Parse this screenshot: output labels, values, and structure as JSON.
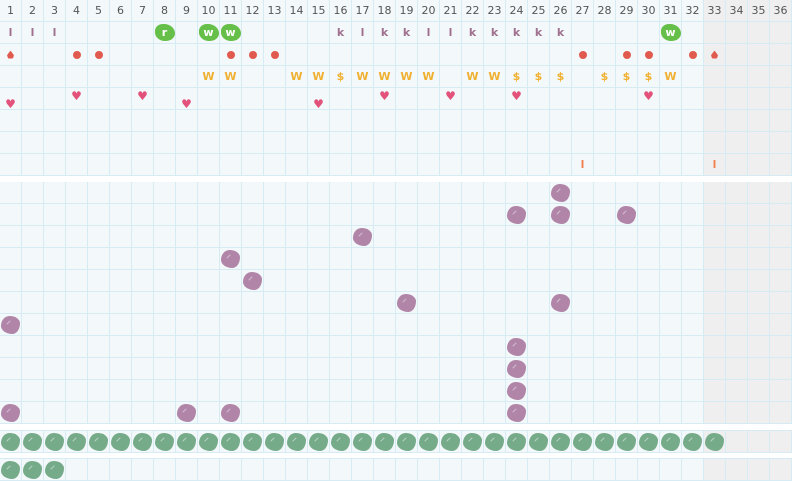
{
  "columns": [
    "1",
    "2",
    "3",
    "4",
    "5",
    "6",
    "7",
    "8",
    "9",
    "10",
    "11",
    "12",
    "13",
    "14",
    "15",
    "16",
    "17",
    "18",
    "19",
    "20",
    "21",
    "22",
    "23",
    "24",
    "25",
    "26",
    "27",
    "28",
    "29",
    "30",
    "31",
    "32",
    "33",
    "34",
    "35",
    "36"
  ],
  "disabled_from_column": 33,
  "colors": {
    "letter_purple": "#a0708f",
    "gold": "#f0b030",
    "red": "#e05a4e",
    "heart": "#e2527a",
    "orange": "#f08050",
    "badge_green": "#66bf48",
    "blob_purple": "#b085a8",
    "blob_green": "#76ab8a"
  },
  "top_rows": [
    [
      {
        "col": 1,
        "t": "text",
        "s": "l",
        "c": "letter_purple"
      },
      {
        "col": 2,
        "t": "text",
        "s": "l",
        "c": "letter_purple"
      },
      {
        "col": 3,
        "t": "text",
        "s": "l",
        "c": "letter_purple"
      },
      {
        "col": 8,
        "t": "badge",
        "s": "r"
      },
      {
        "col": 10,
        "t": "badge",
        "s": "w"
      },
      {
        "col": 11,
        "t": "badge",
        "s": "w"
      },
      {
        "col": 16,
        "t": "text",
        "s": "k",
        "c": "letter_purple"
      },
      {
        "col": 17,
        "t": "text",
        "s": "l",
        "c": "letter_purple"
      },
      {
        "col": 18,
        "t": "text",
        "s": "k",
        "c": "letter_purple"
      },
      {
        "col": 19,
        "t": "text",
        "s": "k",
        "c": "letter_purple"
      },
      {
        "col": 20,
        "t": "text",
        "s": "l",
        "c": "letter_purple"
      },
      {
        "col": 21,
        "t": "text",
        "s": "l",
        "c": "letter_purple"
      },
      {
        "col": 22,
        "t": "text",
        "s": "k",
        "c": "letter_purple"
      },
      {
        "col": 23,
        "t": "text",
        "s": "k",
        "c": "letter_purple"
      },
      {
        "col": 24,
        "t": "text",
        "s": "k",
        "c": "letter_purple"
      },
      {
        "col": 25,
        "t": "text",
        "s": "k",
        "c": "letter_purple"
      },
      {
        "col": 26,
        "t": "text",
        "s": "k",
        "c": "letter_purple"
      },
      {
        "col": 31,
        "t": "badge",
        "s": "w"
      }
    ],
    [
      {
        "col": 1,
        "t": "drop"
      },
      {
        "col": 4,
        "t": "dot"
      },
      {
        "col": 5,
        "t": "dot"
      },
      {
        "col": 11,
        "t": "dot"
      },
      {
        "col": 12,
        "t": "dot"
      },
      {
        "col": 13,
        "t": "dot"
      },
      {
        "col": 27,
        "t": "dot"
      },
      {
        "col": 29,
        "t": "dot"
      },
      {
        "col": 30,
        "t": "dot"
      },
      {
        "col": 32,
        "t": "dot"
      },
      {
        "col": 33,
        "t": "drop"
      }
    ],
    [
      {
        "col": 10,
        "t": "text",
        "s": "W",
        "c": "gold"
      },
      {
        "col": 11,
        "t": "text",
        "s": "W",
        "c": "gold"
      },
      {
        "col": 14,
        "t": "text",
        "s": "W",
        "c": "gold"
      },
      {
        "col": 15,
        "t": "text",
        "s": "W",
        "c": "gold"
      },
      {
        "col": 16,
        "t": "text",
        "s": "$",
        "c": "gold"
      },
      {
        "col": 17,
        "t": "text",
        "s": "W",
        "c": "gold"
      },
      {
        "col": 18,
        "t": "text",
        "s": "W",
        "c": "gold"
      },
      {
        "col": 19,
        "t": "text",
        "s": "W",
        "c": "gold"
      },
      {
        "col": 20,
        "t": "text",
        "s": "W",
        "c": "gold"
      },
      {
        "col": 22,
        "t": "text",
        "s": "W",
        "c": "gold"
      },
      {
        "col": 23,
        "t": "text",
        "s": "W",
        "c": "gold"
      },
      {
        "col": 24,
        "t": "text",
        "s": "$",
        "c": "gold"
      },
      {
        "col": 25,
        "t": "text",
        "s": "$",
        "c": "gold"
      },
      {
        "col": 26,
        "t": "text",
        "s": "$",
        "c": "gold"
      },
      {
        "col": 28,
        "t": "text",
        "s": "$",
        "c": "gold"
      },
      {
        "col": 29,
        "t": "text",
        "s": "$",
        "c": "gold"
      },
      {
        "col": 30,
        "t": "text",
        "s": "$",
        "c": "gold"
      },
      {
        "col": 31,
        "t": "text",
        "s": "W",
        "c": "gold"
      }
    ],
    [
      {
        "col": 1,
        "t": "heart",
        "pos": "down"
      },
      {
        "col": 4,
        "t": "heart",
        "pos": "up"
      },
      {
        "col": 7,
        "t": "heart",
        "pos": "up"
      },
      {
        "col": 9,
        "t": "heart",
        "pos": "down"
      },
      {
        "col": 15,
        "t": "heart",
        "pos": "down"
      },
      {
        "col": 18,
        "t": "heart",
        "pos": "up"
      },
      {
        "col": 21,
        "t": "heart",
        "pos": "up"
      },
      {
        "col": 24,
        "t": "heart",
        "pos": "up"
      },
      {
        "col": 30,
        "t": "heart",
        "pos": "up"
      }
    ],
    [],
    [],
    [
      {
        "col": 27,
        "t": "text",
        "s": "l",
        "c": "orange"
      },
      {
        "col": 33,
        "t": "text",
        "s": "l",
        "c": "orange"
      }
    ]
  ],
  "lower_rows": [
    [
      26
    ],
    [
      24,
      26,
      29
    ],
    [
      17
    ],
    [
      11
    ],
    [
      12
    ],
    [
      19,
      26
    ],
    [
      1
    ],
    [
      24
    ],
    [
      24
    ],
    [
      24
    ],
    [
      1,
      9,
      11,
      24
    ]
  ],
  "tray_rows": [
    {
      "filled": 33
    },
    {
      "filled": 3
    }
  ]
}
